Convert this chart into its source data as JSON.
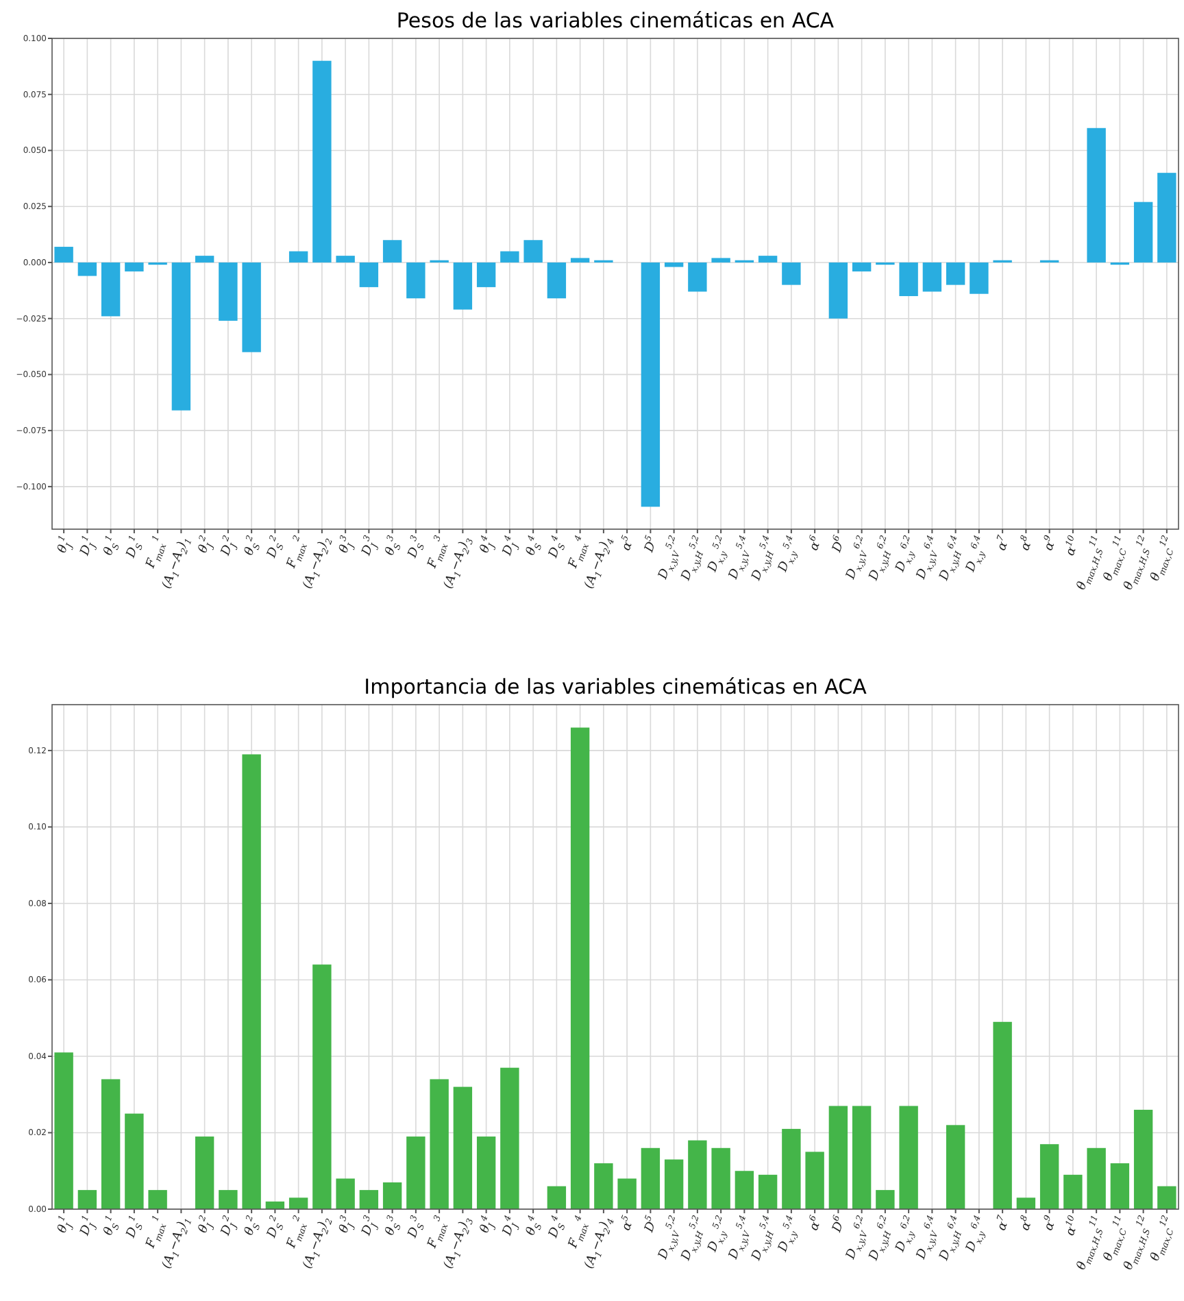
{
  "chart_data": [
    {
      "type": "bar",
      "title": "Pesos de las variables cinemáticas en ACA",
      "categories": [
        "θ$_{J}$$^{1}$",
        "D$_{J}$$^{1}$",
        "θ$_{S}$$^{1}$",
        "D$_{S}$$^{1}$",
        "F$_{max}$$^{1}$",
        "(A$_{1}$−A$_{2}$)$_{1}$",
        "θ$_{J}$$^{2}$",
        "D$_{J}$$^{2}$",
        "θ$_{S}$$^{2}$",
        "D$_{S}$$^{2}$",
        "F$_{max}$$^{2}$",
        "(A$_{1}$−A$_{2}$)$_{2}$",
        "θ$_{J}$$^{3}$",
        "D$_{J}$$^{3}$",
        "θ$_{S}$$^{3}$",
        "D$_{S}$$^{3}$",
        "F$_{max}$$^{3}$",
        "(A$_{1}$−A$_{2}$)$_{3}$",
        "θ$_{J}$$^{4}$",
        "D$_{J}$$^{4}$",
        "θ$_{S}$$^{4}$",
        "D$_{S}$$^{4}$",
        "F$_{max}$$^{4}$",
        "(A$_{1}$−A$_{2}$)$_{4}$",
        "α$^{5}$",
        "D$^{5}$",
        "D$_{x,y,V}$$^{5,2}$",
        "D$_{x,y,H}$$^{5,2}$",
        "D$_{x,y}$$^{5,2}$",
        "D$_{x,y,V}$$^{5,4}$",
        "D$_{x,y,H}$$^{5,4}$",
        "D$_{x,y}$$^{5,4}$",
        "α$^{6}$",
        "D$^{6}$",
        "D$_{x,y,V}$$^{6,2}$",
        "D$_{x,y,H}$$^{6,2}$",
        "D$_{x,y}$$^{6,2}$",
        "D$_{x,y,V}$$^{6,4}$",
        "D$_{x,y,H}$$^{6,4}$",
        "D$_{x,y}$$^{6,4}$",
        "α$^{7}$",
        "α$^{8}$",
        "α$^{9}$",
        "α$^{10}$",
        "θ$_{max,H,S}$$^{11}$",
        "θ$_{max,C}$$^{11}$",
        "θ$_{max,H,S}$$^{12}$",
        "θ$_{max,C}$$^{12}$"
      ],
      "values": [
        0.007,
        -0.006,
        -0.024,
        -0.004,
        -0.001,
        -0.066,
        0.003,
        -0.026,
        -0.04,
        0,
        0.005,
        0.09,
        0.003,
        -0.011,
        0.01,
        -0.016,
        0.001,
        -0.021,
        -0.011,
        0.005,
        0.01,
        -0.016,
        0.002,
        0.001,
        0,
        -0.109,
        -0.002,
        -0.013,
        0.002,
        0.001,
        0.003,
        -0.01,
        0,
        -0.025,
        -0.004,
        -0.001,
        -0.015,
        -0.013,
        -0.01,
        -0.014,
        0.001,
        0,
        0.001,
        0,
        0.06,
        -0.001,
        0.027,
        0.04
      ],
      "color": "#29ade0",
      "ylim": [
        -0.119,
        0.1
      ],
      "yticks": [
        {
          "value": -0.1,
          "label": "−0.100"
        },
        {
          "value": -0.075,
          "label": "−0.075"
        },
        {
          "value": -0.05,
          "label": "−0.050"
        },
        {
          "value": -0.025,
          "label": "−0.025"
        },
        {
          "value": 0,
          "label": "0.000"
        },
        {
          "value": 0.025,
          "label": "0.025"
        },
        {
          "value": 0.05,
          "label": "0.050"
        },
        {
          "value": 0.075,
          "label": "0.075"
        },
        {
          "value": 0.1,
          "label": "0.100"
        }
      ],
      "grid": true
    },
    {
      "type": "bar",
      "title": "Importancia de las variables cinemáticas en ACA",
      "categories": [
        "θ$_{J}$$^{1}$",
        "D$_{J}$$^{1}$",
        "θ$_{S}$$^{1}$",
        "D$_{S}$$^{1}$",
        "F$_{max}$$^{1}$",
        "(A$_{1}$−A$_{2}$)$_{1}$",
        "θ$_{J}$$^{2}$",
        "D$_{J}$$^{2}$",
        "θ$_{S}$$^{2}$",
        "D$_{S}$$^{2}$",
        "F$_{max}$$^{2}$",
        "(A$_{1}$−A$_{2}$)$_{2}$",
        "θ$_{J}$$^{3}$",
        "D$_{J}$$^{3}$",
        "θ$_{S}$$^{3}$",
        "D$_{S}$$^{3}$",
        "F$_{max}$$^{3}$",
        "(A$_{1}$−A$_{2}$)$_{3}$",
        "θ$_{J}$$^{4}$",
        "D$_{J}$$^{4}$",
        "θ$_{S}$$^{4}$",
        "D$_{S}$$^{4}$",
        "F$_{max}$$^{4}$",
        "(A$_{1}$−A$_{2}$)$_{4}$",
        "α$^{5}$",
        "D$^{5}$",
        "D$_{x,y,V}$$^{5,2}$",
        "D$_{x,y,H}$$^{5,2}$",
        "D$_{x,y}$$^{5,2}$",
        "D$_{x,y,V}$$^{5,4}$",
        "D$_{x,y,H}$$^{5,4}$",
        "D$_{x,y}$$^{5,4}$",
        "α$^{6}$",
        "D$^{6}$",
        "D$_{x,y,V}$$^{6,2}$",
        "D$_{x,y,H}$$^{6,2}$",
        "D$_{x,y}$$^{6,2}$",
        "D$_{x,y,V}$$^{6,4}$",
        "D$_{x,y,H}$$^{6,4}$",
        "D$_{x,y}$$^{6,4}$",
        "α$^{7}$",
        "α$^{8}$",
        "α$^{9}$",
        "α$^{10}$",
        "θ$_{max,H,S}$$^{11}$",
        "θ$_{max,C}$$^{11}$",
        "θ$_{max,H,S}$$^{12}$",
        "θ$_{max,C}$$^{12}$"
      ],
      "values": [
        0.041,
        0.005,
        0.034,
        0.025,
        0.005,
        0,
        0.019,
        0.005,
        0.119,
        0.002,
        0.003,
        0.064,
        0.008,
        0.005,
        0.007,
        0.019,
        0.034,
        0.032,
        0.019,
        0.037,
        0,
        0.006,
        0.126,
        0.012,
        0.008,
        0.016,
        0.013,
        0.018,
        0.016,
        0.01,
        0.009,
        0.021,
        0.015,
        0.027,
        0.027,
        0.005,
        0.027,
        0,
        0.022,
        0,
        0.049,
        0.003,
        0.017,
        0.009,
        0.016,
        0.012,
        0.026,
        0.006
      ],
      "color": "#44b549",
      "ylim": [
        0,
        0.132
      ],
      "yticks": [
        {
          "value": 0,
          "label": "0.00"
        },
        {
          "value": 0.02,
          "label": "0.02"
        },
        {
          "value": 0.04,
          "label": "0.04"
        },
        {
          "value": 0.06,
          "label": "0.06"
        },
        {
          "value": 0.08,
          "label": "0.08"
        },
        {
          "value": 0.1,
          "label": "0.10"
        },
        {
          "value": 0.12,
          "label": "0.12"
        }
      ],
      "grid": true
    }
  ]
}
